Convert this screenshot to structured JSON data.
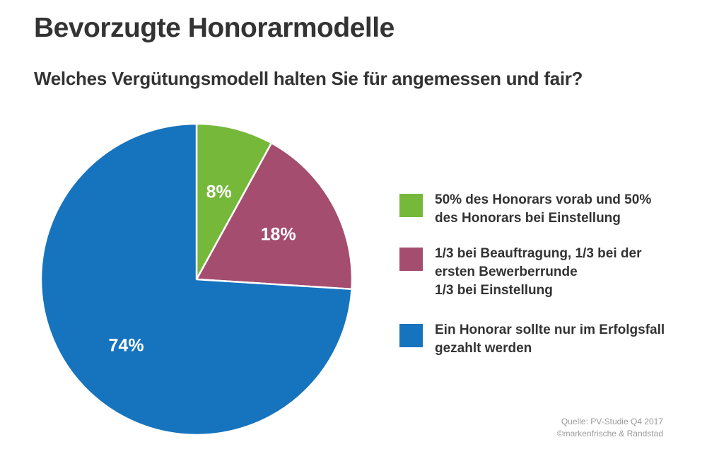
{
  "title": "Bevorzugte Honorarmodelle",
  "subtitle": "Welches Vergütungsmodell halten Sie für angemessen und fair?",
  "chart_data": {
    "type": "pie",
    "title": "Bevorzugte Honorarmodelle",
    "subtitle": "Welches Vergütungsmodell halten Sie für angemessen und fair?",
    "slices": [
      {
        "label": "50% des Honorars vorab und 50%\ndes Honorars bei Einstellung",
        "value": 8,
        "display": "8%",
        "color": "#76b83a"
      },
      {
        "label": "1/3 bei Beauftragung, 1/3 bei der\nersten Bewerberrunde\n1/3 bei Einstellung",
        "value": 18,
        "display": "18%",
        "color": "#a44d6e"
      },
      {
        "label": "Ein Honorar sollte nur im Erfolgsfall\ngezahlt werden",
        "value": 74,
        "display": "74%",
        "color": "#1673bd"
      }
    ],
    "legend_position": "right",
    "start_angle": "top, clockwise"
  },
  "source": {
    "line1": "Quelle: PV-Studie Q4 2017",
    "line2": "©markenfrische & Randstad"
  }
}
